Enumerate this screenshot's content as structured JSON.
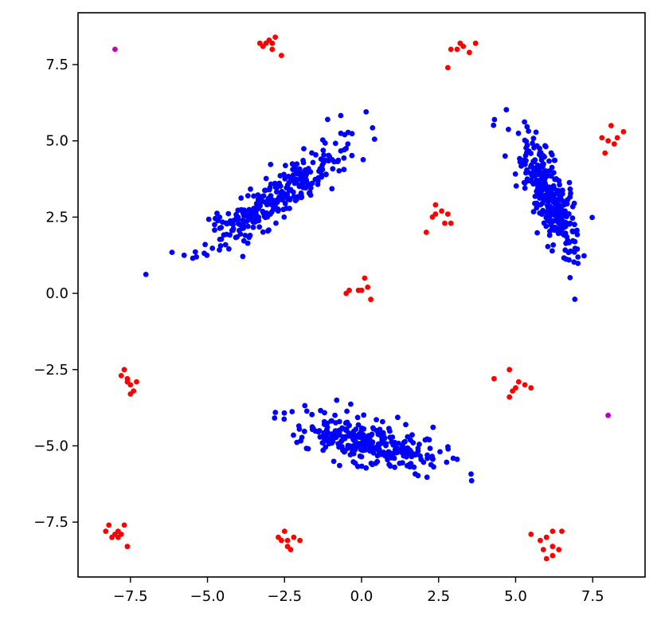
{
  "chart_data": {
    "type": "scatter",
    "title": "",
    "xlabel": "",
    "ylabel": "",
    "xlim": [
      -9.2,
      9.2
    ],
    "ylim": [
      -9.3,
      9.2
    ],
    "x_ticks": [
      -7.5,
      -5.0,
      -2.5,
      0.0,
      2.5,
      5.0,
      7.5
    ],
    "x_tick_labels": [
      "−7.5",
      "−5.0",
      "−2.5",
      "0.0",
      "2.5",
      "5.0",
      "7.5"
    ],
    "y_ticks": [
      -7.5,
      -5.0,
      -2.5,
      0.0,
      2.5,
      5.0,
      7.5
    ],
    "y_tick_labels": [
      "−7.5",
      "−5.0",
      "−2.5",
      "0.0",
      "2.5",
      "5.0",
      "7.5"
    ],
    "grid": false,
    "colors": {
      "blue": "#0000ff",
      "red": "#ff0000",
      "magenta": "#bf00bf"
    },
    "series": [
      {
        "color": "blue",
        "clusters": [
          {
            "center": [
              -2.8,
              3.1
            ],
            "major_sd": 1.4,
            "minor_sd": 0.32,
            "angle_deg": 36,
            "count": 300,
            "seed": 11
          },
          {
            "center": [
              6.0,
              3.3
            ],
            "major_sd": 1.05,
            "minor_sd": 0.32,
            "angle_deg": -67,
            "count": 300,
            "seed": 23
          },
          {
            "center": [
              0.3,
              -4.9
            ],
            "major_sd": 1.2,
            "minor_sd": 0.35,
            "angle_deg": -14,
            "count": 300,
            "seed": 37
          }
        ]
      },
      {
        "color": "red",
        "points": [
          [
            -3.2,
            8.1
          ],
          [
            -3.0,
            8.3
          ],
          [
            -2.8,
            8.4
          ],
          [
            -3.1,
            8.2
          ],
          [
            -2.9,
            8.0
          ],
          [
            -2.6,
            7.8
          ],
          [
            -2.9,
            8.2
          ],
          [
            -3.3,
            8.2
          ],
          [
            2.8,
            7.4
          ],
          [
            2.9,
            8.0
          ],
          [
            3.2,
            8.2
          ],
          [
            3.1,
            8.0
          ],
          [
            3.5,
            7.9
          ],
          [
            3.7,
            8.2
          ],
          [
            3.3,
            8.1
          ],
          [
            7.8,
            5.1
          ],
          [
            8.0,
            5.0
          ],
          [
            8.1,
            5.5
          ],
          [
            8.5,
            5.3
          ],
          [
            7.9,
            4.6
          ],
          [
            8.2,
            4.9
          ],
          [
            8.3,
            5.1
          ],
          [
            2.1,
            2.0
          ],
          [
            2.4,
            2.9
          ],
          [
            2.6,
            2.7
          ],
          [
            2.8,
            2.6
          ],
          [
            2.9,
            2.3
          ],
          [
            2.7,
            2.3
          ],
          [
            2.4,
            2.6
          ],
          [
            2.3,
            2.5
          ],
          [
            -0.5,
            0.0
          ],
          [
            -0.4,
            0.1
          ],
          [
            0.1,
            0.5
          ],
          [
            0.2,
            0.2
          ],
          [
            0.0,
            0.1
          ],
          [
            0.3,
            -0.2
          ],
          [
            -0.1,
            0.1
          ],
          [
            -7.7,
            -2.5
          ],
          [
            -7.8,
            -2.7
          ],
          [
            -7.6,
            -2.8
          ],
          [
            -7.5,
            -3.0
          ],
          [
            -7.3,
            -2.9
          ],
          [
            -7.4,
            -3.2
          ],
          [
            -7.5,
            -3.3
          ],
          [
            -7.6,
            -2.9
          ],
          [
            4.3,
            -2.8
          ],
          [
            4.8,
            -2.5
          ],
          [
            5.1,
            -2.9
          ],
          [
            4.9,
            -3.2
          ],
          [
            5.3,
            -3.0
          ],
          [
            5.5,
            -3.1
          ],
          [
            4.8,
            -3.4
          ],
          [
            5.0,
            -3.1
          ],
          [
            -8.3,
            -7.8
          ],
          [
            -8.2,
            -7.6
          ],
          [
            -8.0,
            -7.9
          ],
          [
            -7.9,
            -7.8
          ],
          [
            -7.7,
            -7.6
          ],
          [
            -7.6,
            -8.3
          ],
          [
            -7.9,
            -8.0
          ],
          [
            -8.1,
            -8.0
          ],
          [
            -7.8,
            -7.9
          ],
          [
            -2.7,
            -8.0
          ],
          [
            -2.5,
            -7.8
          ],
          [
            -2.4,
            -8.3
          ],
          [
            -2.2,
            -8.0
          ],
          [
            -2.0,
            -8.1
          ],
          [
            -2.3,
            -8.4
          ],
          [
            -2.6,
            -8.1
          ],
          [
            -2.4,
            -8.1
          ],
          [
            5.5,
            -7.9
          ],
          [
            5.8,
            -8.1
          ],
          [
            6.0,
            -8.0
          ],
          [
            6.2,
            -7.8
          ],
          [
            6.5,
            -7.8
          ],
          [
            5.9,
            -8.4
          ],
          [
            6.2,
            -8.3
          ],
          [
            6.4,
            -8.4
          ],
          [
            6.0,
            -8.7
          ],
          [
            6.2,
            -8.6
          ]
        ]
      },
      {
        "color": "magenta",
        "points": [
          [
            -8.0,
            8.0
          ],
          [
            8.0,
            -4.0
          ]
        ]
      }
    ]
  }
}
